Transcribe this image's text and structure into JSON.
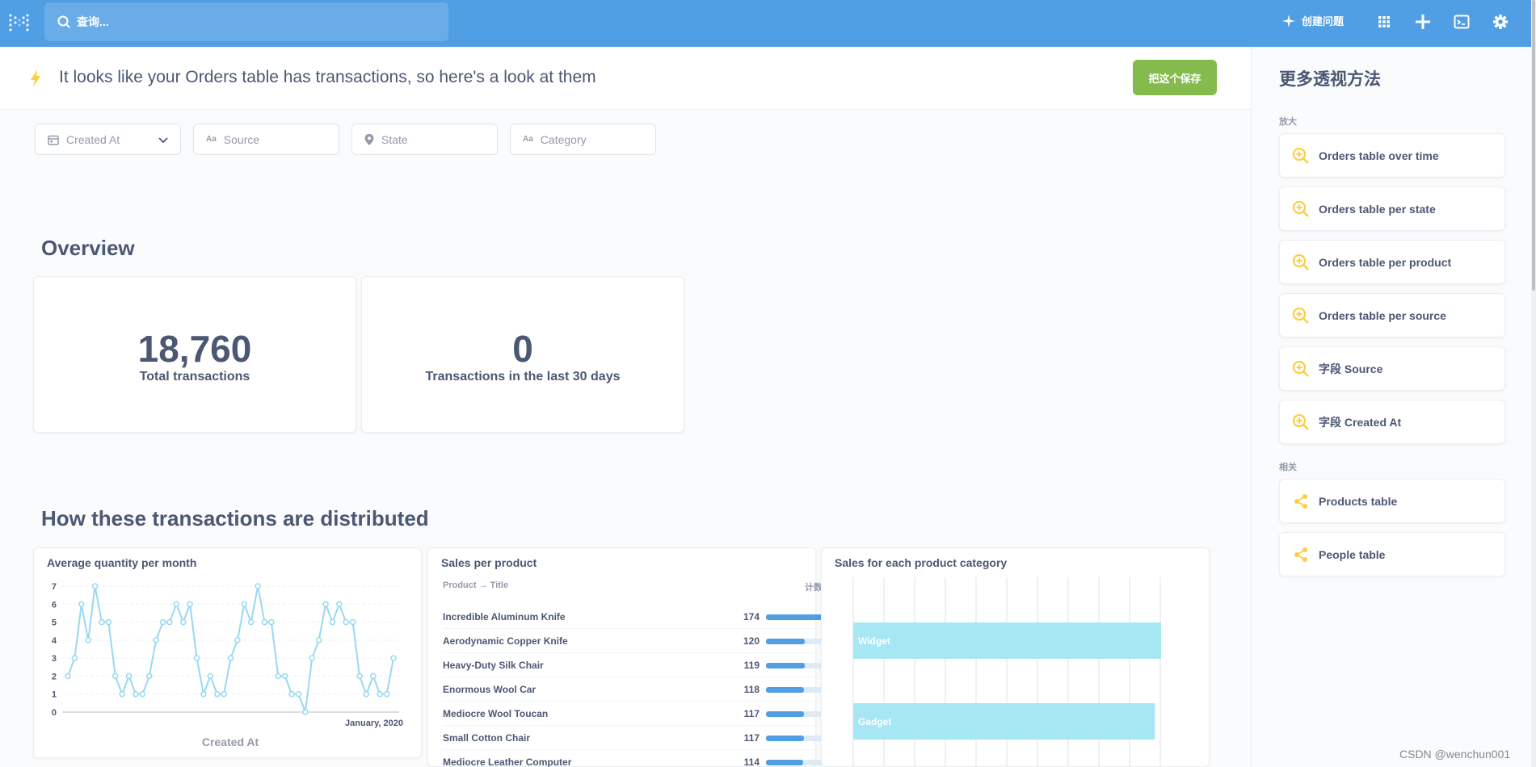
{
  "nav": {
    "search_placeholder": "查询...",
    "new_question_label": "创建问题",
    "icons": [
      "logo-icon",
      "search-icon",
      "sparkle-icon",
      "grid-icon",
      "plus-icon",
      "terminal-icon",
      "gear-icon"
    ]
  },
  "header": {
    "title": "It looks like your Orders table has transactions, so here's a look at them",
    "save_label": "把这个保存"
  },
  "filters": [
    {
      "label": "Created At",
      "icon": "calendar-icon"
    },
    {
      "label": "Source",
      "icon": "text-aa-icon"
    },
    {
      "label": "State",
      "icon": "location-pin-icon"
    },
    {
      "label": "Category",
      "icon": "text-aa-icon"
    }
  ],
  "filter_aa": "Aa",
  "overview": {
    "title": "Overview",
    "cards": [
      {
        "value": "18,760",
        "label": "Total transactions"
      },
      {
        "value": "0",
        "label": "Transactions in the last 30 days"
      }
    ]
  },
  "distribution": {
    "title": "How these transactions are distributed"
  },
  "line_card": {
    "title": "Average quantity per month",
    "xlabel": "Created At",
    "x_tick_label": "January, 2020"
  },
  "chart_data": [
    {
      "type": "line",
      "title": "Average quantity per month",
      "xlabel": "Created At",
      "ylabel": "",
      "ylim": [
        0,
        7
      ],
      "yticks": [
        0,
        1,
        2,
        3,
        4,
        5,
        6,
        7
      ],
      "x_tick_labels": [
        "January, 2020"
      ],
      "grid": true,
      "values": [
        2,
        3,
        6,
        4,
        7,
        5,
        5,
        2,
        1,
        2,
        1,
        1,
        2,
        4,
        5,
        5,
        6,
        5,
        6,
        3,
        1,
        2,
        1,
        1,
        3,
        4,
        6,
        5,
        7,
        5,
        5,
        2,
        2,
        1,
        1,
        0,
        3,
        4,
        6,
        5,
        6,
        5,
        5,
        2,
        1,
        2,
        1,
        1,
        3
      ],
      "color": "#98d9f0"
    },
    {
      "type": "bar",
      "orientation": "horizontal",
      "title": "Sales for each product category",
      "categories": [
        "Widget",
        "Gadget"
      ],
      "values": [
        100,
        98
      ],
      "color": "#a6e7f3"
    }
  ],
  "table_card": {
    "title": "Sales per product",
    "col_title": "Product → Title",
    "col_count": "计数",
    "rows": [
      {
        "title": "Incredible Aluminum Knife",
        "count": 174
      },
      {
        "title": "Aerodynamic Copper Knife",
        "count": 120
      },
      {
        "title": "Heavy-Duty Silk Chair",
        "count": 119
      },
      {
        "title": "Enormous Wool Car",
        "count": 118
      },
      {
        "title": "Mediocre Wool Toucan",
        "count": 117
      },
      {
        "title": "Small Cotton Chair",
        "count": 117
      },
      {
        "title": "Mediocre Leather Computer",
        "count": 114
      }
    ]
  },
  "bar_card": {
    "title": "Sales for each product category"
  },
  "sidebar": {
    "title": "更多透视方法",
    "zoom_label": "放大",
    "zoom_items": [
      "Orders table over time",
      "Orders table per state",
      "Orders table per product",
      "Orders table per source",
      "字段 Source",
      "字段 Created At"
    ],
    "related_label": "相关",
    "related_items": [
      "Products table",
      "People table"
    ]
  },
  "watermark": "CSDN @wenchun001",
  "colors": {
    "brand": "#509ee3",
    "save": "#84bb4c",
    "zoom_icon": "#f9cf48",
    "text": "#4c5773"
  }
}
